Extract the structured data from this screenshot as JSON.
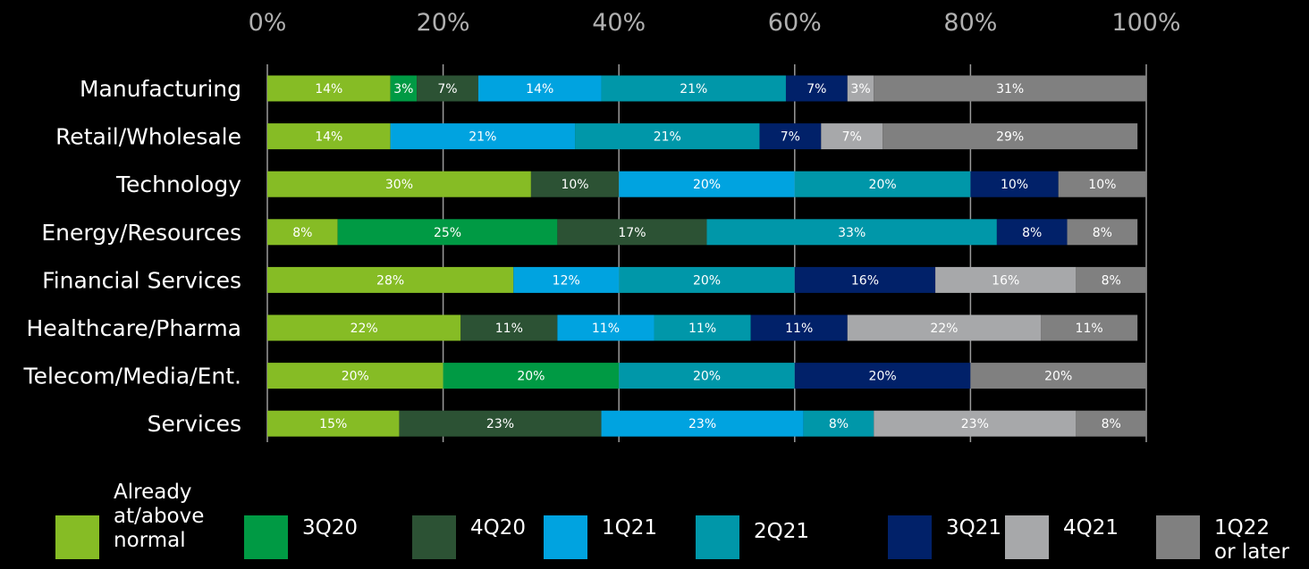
{
  "chart_data": {
    "type": "bar",
    "orientation": "horizontal",
    "stacked": true,
    "xlim": [
      0,
      100
    ],
    "x_ticks": [
      "0%",
      "20%",
      "40%",
      "60%",
      "80%",
      "100%"
    ],
    "grid": true,
    "legend_position": "bottom",
    "categories": [
      "Manufacturing",
      "Retail/Wholesale",
      "Technology",
      "Energy/Resources",
      "Financial Services",
      "Healthcare/Pharma",
      "Telecom/Media/Ent.",
      "Services"
    ],
    "series": [
      {
        "name": "Already\nat/above\nnormal",
        "color": "#86bc25",
        "values": [
          14,
          14,
          30,
          8,
          28,
          22,
          20,
          15
        ]
      },
      {
        "name": "3Q20",
        "color": "#009a44",
        "values": [
          3,
          0,
          0,
          25,
          0,
          0,
          20,
          0
        ]
      },
      {
        "name": "4Q20",
        "color": "#2c5234",
        "values": [
          7,
          0,
          10,
          17,
          0,
          11,
          0,
          23
        ]
      },
      {
        "name": "1Q21",
        "color": "#00a3e0",
        "values": [
          14,
          21,
          20,
          0,
          12,
          11,
          0,
          23
        ]
      },
      {
        "name": "2Q21",
        "color": "#0097a9",
        "values": [
          21,
          21,
          20,
          33,
          20,
          11,
          20,
          8
        ]
      },
      {
        "name": "3Q21",
        "color": "#012169",
        "values": [
          7,
          7,
          10,
          8,
          16,
          11,
          20,
          0
        ]
      },
      {
        "name": "4Q21",
        "color": "#a7a8aa",
        "values": [
          3,
          7,
          0,
          0,
          16,
          22,
          0,
          23
        ]
      },
      {
        "name": "1Q22\nor later",
        "color": "#808080",
        "values": [
          31,
          29,
          10,
          8,
          8,
          11,
          20,
          8
        ]
      }
    ],
    "data_labels": [
      [
        "14%",
        "3%",
        "7%",
        "14%",
        "21%",
        "7%",
        "3%",
        "31%"
      ],
      [
        "14%",
        "",
        "",
        "21%",
        "21%",
        "7%",
        "7%",
        "29%"
      ],
      [
        "30%",
        "",
        "10%",
        "20%",
        "20%",
        "10%",
        "",
        "10%"
      ],
      [
        "8%",
        "25%",
        "17%",
        "",
        "33%",
        "8%",
        "",
        "8%"
      ],
      [
        "28%",
        "",
        "",
        "12%",
        "20%",
        "16%",
        "16%",
        "8%"
      ],
      [
        "22%",
        "",
        "11%",
        "11%",
        "11%",
        "11%",
        "22%",
        "11%"
      ],
      [
        "20%",
        "20%",
        "",
        "",
        "20%",
        "20%",
        "",
        "20%"
      ],
      [
        "15%",
        "",
        "23%",
        "23%",
        "8%",
        "",
        "23%",
        "8%"
      ]
    ]
  }
}
